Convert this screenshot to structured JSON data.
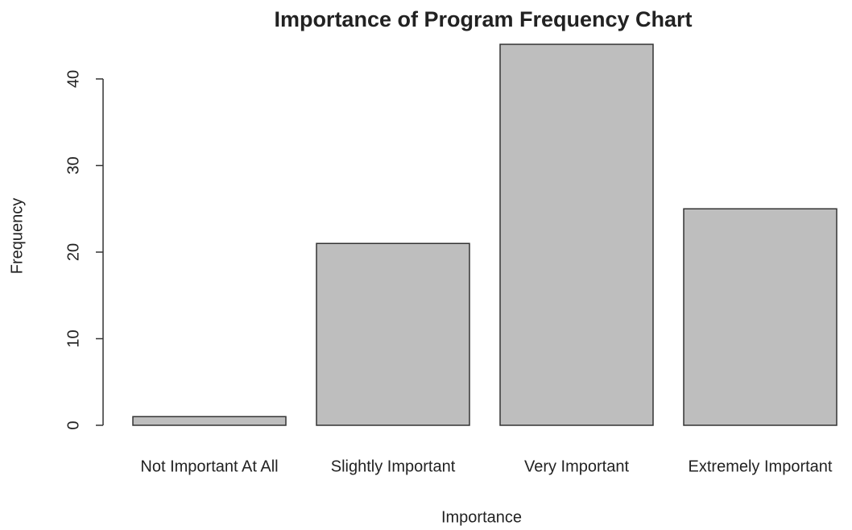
{
  "chart_data": {
    "type": "bar",
    "title": "Importance of Program Frequency Chart",
    "x_label": "Importance",
    "y_label": "Frequency",
    "categories": [
      "Not Important At All",
      "Slightly Important",
      "Very Important",
      "Extremely Important"
    ],
    "values": [
      1,
      21,
      44,
      25
    ],
    "color": "#bebebe",
    "ylim": [
      0,
      44
    ],
    "yticks": [
      0,
      10,
      20,
      30,
      40
    ],
    "grid": false
  }
}
